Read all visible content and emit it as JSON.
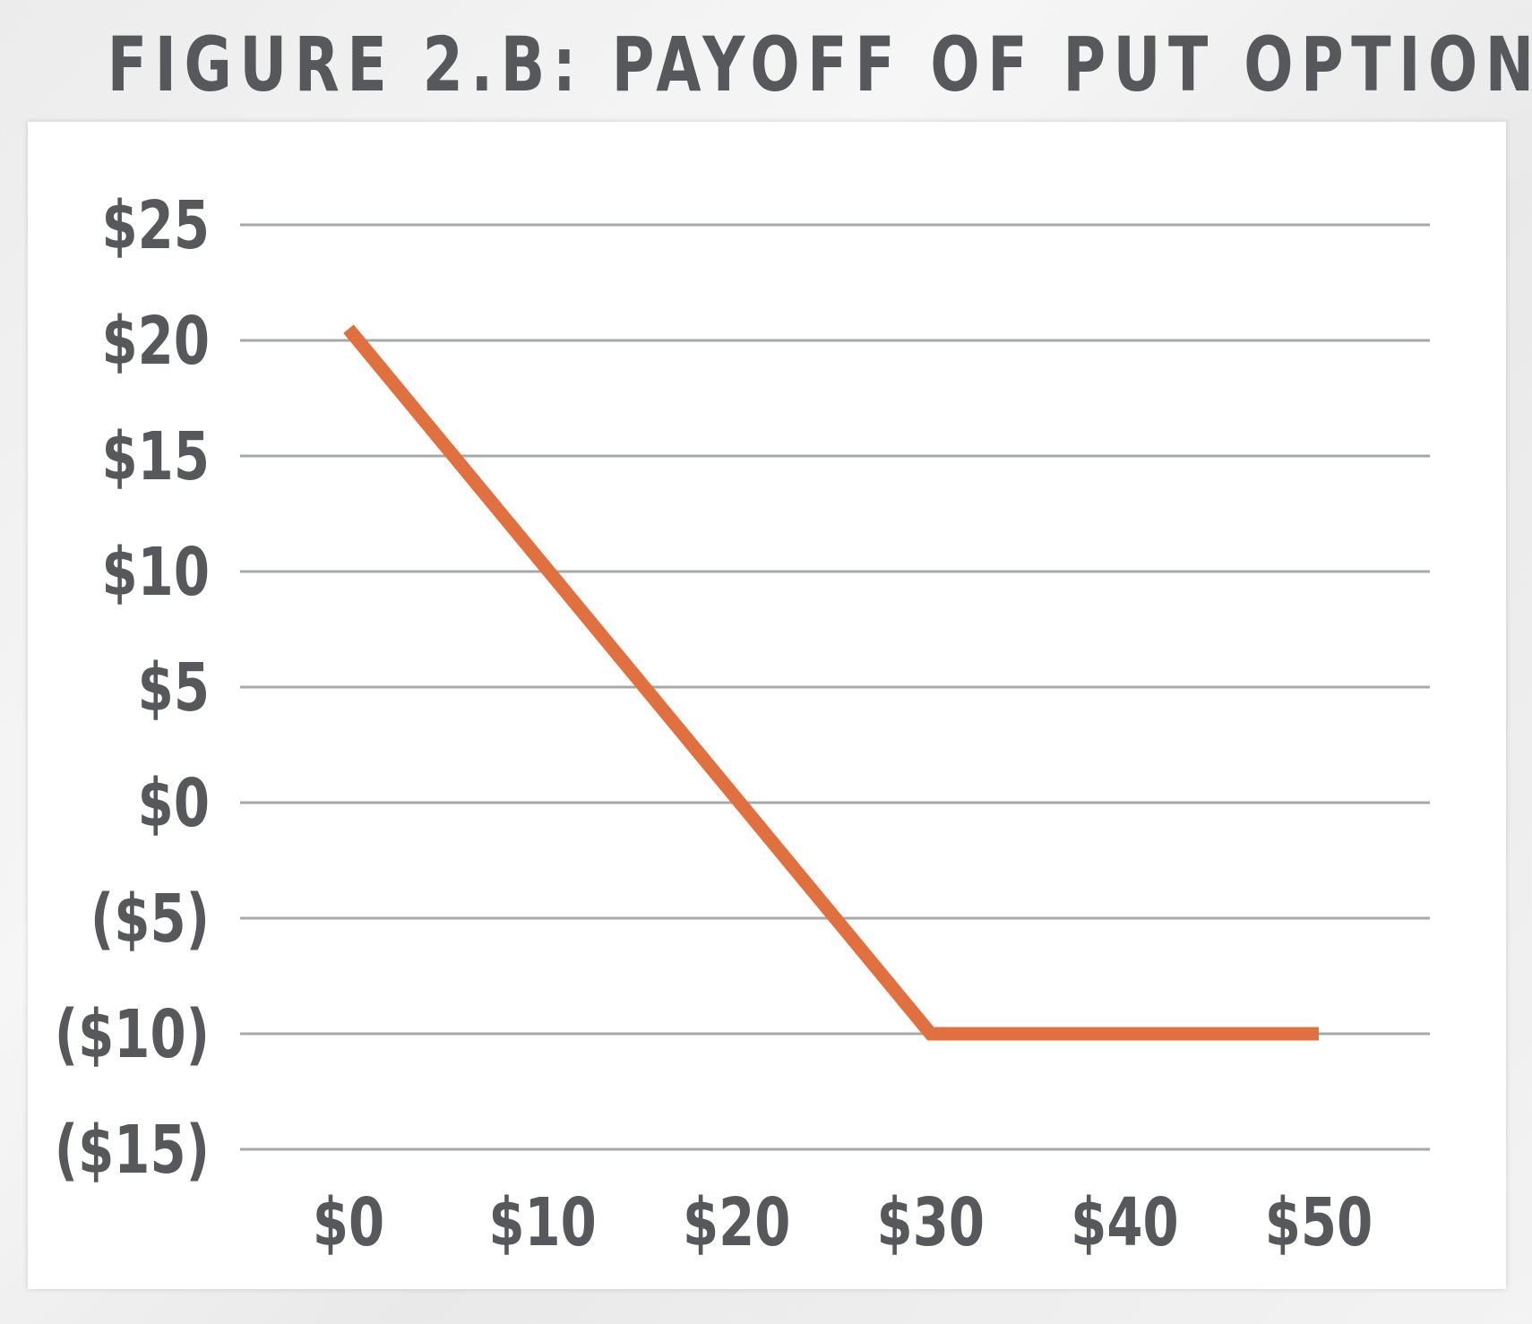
{
  "chart_data": {
    "type": "line",
    "title": "FIGURE 2.B: PAYOFF OF PUT OPTION",
    "xlabel": "",
    "ylabel": "",
    "x_ticks": [
      "$0",
      "$10",
      "$20",
      "$30",
      "$40",
      "$50"
    ],
    "y_ticks": [
      "$25",
      "$20",
      "$15",
      "$10",
      "$5",
      "$0",
      "($5)",
      "($10)",
      "($15)"
    ],
    "x_tick_values": [
      0,
      10,
      20,
      30,
      40,
      50
    ],
    "y_tick_values": [
      25,
      20,
      15,
      10,
      5,
      0,
      -5,
      -10,
      -15
    ],
    "xlim": [
      0,
      50
    ],
    "ylim": [
      -15,
      25
    ],
    "grid": true,
    "series": [
      {
        "color": "#e07040",
        "points": [
          [
            0,
            20.5
          ],
          [
            30,
            -10
          ],
          [
            50,
            -10
          ]
        ]
      }
    ]
  },
  "colors": {
    "text": "#57585c",
    "grid": "#a7a8aa",
    "line": "#e07040"
  }
}
